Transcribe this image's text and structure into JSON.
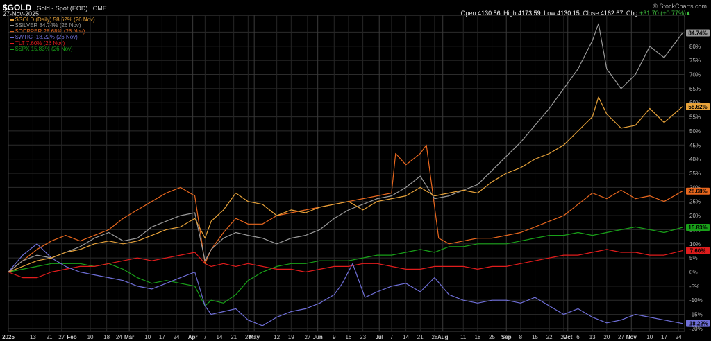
{
  "header": {
    "symbol": "$GOLD",
    "description": "Gold - Spot (EOD)",
    "exchange": "CME",
    "date": "27-Nov-2025",
    "brand": "© StockCharts.com",
    "ohlc": {
      "open_label": "Open",
      "open": "4130.56",
      "high_label": "High",
      "high": "4173.59",
      "low_label": "Low",
      "low": "4130.15",
      "close_label": "Close",
      "close": "4162.67",
      "chg_label": "Chg",
      "chg": "+31.70 (+0.77%)"
    }
  },
  "legend": [
    {
      "text": "$GOLD (Daily) 58.62% (26 Nov)",
      "color": "#e8a33a"
    },
    {
      "text": "$SILVER 84.74% (26 Nov)",
      "color": "#9a9a9a"
    },
    {
      "text": "$COPPER 28.68% (26 Nov)",
      "color": "#e8671e"
    },
    {
      "text": "$WTIC -18.22% (26 Nov)",
      "color": "#6f6fd8"
    },
    {
      "text": "TLT 7.60% (26 Nov)",
      "color": "#e01c1c"
    },
    {
      "text": "$SPX 15.83% (26 Nov)",
      "color": "#19a019"
    }
  ],
  "chart_data": {
    "type": "line",
    "ylim": [
      -21,
      91
    ],
    "y_ticks": [
      -20,
      -15,
      -10,
      -5,
      0,
      5,
      10,
      15,
      20,
      25,
      30,
      35,
      40,
      45,
      50,
      55,
      60,
      65,
      70,
      75,
      80,
      85
    ],
    "y_tick_labels": [
      "-20%",
      "-15%",
      "-10%",
      "-5%",
      "0%",
      "5%",
      "10%",
      "15%",
      "20%",
      "25%",
      "30%",
      "35%",
      "40%",
      "45%",
      "50%",
      "55%",
      "60%",
      "65%",
      "70%",
      "75%",
      "80%",
      "85%"
    ],
    "x_range": [
      "2025-01-01",
      "2025-11-27"
    ],
    "x_ticks": [
      {
        "date": "2025-01-01",
        "label": "2025",
        "bold": true
      },
      {
        "date": "2025-01-13",
        "label": "13"
      },
      {
        "date": "2025-01-21",
        "label": "21"
      },
      {
        "date": "2025-01-27",
        "label": "27"
      },
      {
        "date": "2025-02-01",
        "label": "Feb",
        "bold": true
      },
      {
        "date": "2025-02-10",
        "label": "10"
      },
      {
        "date": "2025-02-18",
        "label": "18"
      },
      {
        "date": "2025-02-24",
        "label": "24"
      },
      {
        "date": "2025-03-01",
        "label": "Mar",
        "bold": true
      },
      {
        "date": "2025-03-10",
        "label": "10"
      },
      {
        "date": "2025-03-17",
        "label": "17"
      },
      {
        "date": "2025-03-24",
        "label": "24"
      },
      {
        "date": "2025-04-01",
        "label": "Apr",
        "bold": true
      },
      {
        "date": "2025-04-07",
        "label": "7"
      },
      {
        "date": "2025-04-14",
        "label": "14"
      },
      {
        "date": "2025-04-21",
        "label": "21"
      },
      {
        "date": "2025-04-28",
        "label": "28"
      },
      {
        "date": "2025-05-01",
        "label": "May",
        "bold": true
      },
      {
        "date": "2025-05-12",
        "label": "12"
      },
      {
        "date": "2025-05-19",
        "label": "19"
      },
      {
        "date": "2025-05-27",
        "label": "27"
      },
      {
        "date": "2025-06-01",
        "label": "Jun",
        "bold": true
      },
      {
        "date": "2025-06-09",
        "label": "9"
      },
      {
        "date": "2025-06-16",
        "label": "16"
      },
      {
        "date": "2025-06-23",
        "label": "23"
      },
      {
        "date": "2025-07-01",
        "label": "Jul",
        "bold": true
      },
      {
        "date": "2025-07-07",
        "label": "7"
      },
      {
        "date": "2025-07-14",
        "label": "14"
      },
      {
        "date": "2025-07-21",
        "label": "21"
      },
      {
        "date": "2025-07-28",
        "label": "28"
      },
      {
        "date": "2025-08-01",
        "label": "Aug",
        "bold": true
      },
      {
        "date": "2025-08-11",
        "label": "11"
      },
      {
        "date": "2025-08-18",
        "label": "18"
      },
      {
        "date": "2025-08-25",
        "label": "25"
      },
      {
        "date": "2025-09-01",
        "label": "Sep",
        "bold": true
      },
      {
        "date": "2025-09-08",
        "label": "8"
      },
      {
        "date": "2025-09-15",
        "label": "15"
      },
      {
        "date": "2025-09-22",
        "label": "22"
      },
      {
        "date": "2025-09-29",
        "label": "29"
      },
      {
        "date": "2025-10-01",
        "label": "Oct",
        "bold": true
      },
      {
        "date": "2025-10-06",
        "label": "6"
      },
      {
        "date": "2025-10-13",
        "label": "13"
      },
      {
        "date": "2025-10-20",
        "label": "20"
      },
      {
        "date": "2025-10-27",
        "label": "27"
      },
      {
        "date": "2025-11-01",
        "label": "Nov",
        "bold": true
      },
      {
        "date": "2025-11-10",
        "label": "10"
      },
      {
        "date": "2025-11-17",
        "label": "17"
      },
      {
        "date": "2025-11-24",
        "label": "24"
      }
    ],
    "series": [
      {
        "name": "$GOLD",
        "color": "#e8a33a",
        "last_label": "58.62%",
        "last": 58.62,
        "x": [
          "2025-01-01",
          "2025-01-08",
          "2025-01-15",
          "2025-01-22",
          "2025-01-29",
          "2025-02-05",
          "2025-02-12",
          "2025-02-19",
          "2025-02-26",
          "2025-03-05",
          "2025-03-12",
          "2025-03-19",
          "2025-03-26",
          "2025-04-02",
          "2025-04-07",
          "2025-04-10",
          "2025-04-16",
          "2025-04-22",
          "2025-04-28",
          "2025-05-05",
          "2025-05-12",
          "2025-05-19",
          "2025-05-26",
          "2025-06-02",
          "2025-06-09",
          "2025-06-16",
          "2025-06-23",
          "2025-06-30",
          "2025-07-07",
          "2025-07-14",
          "2025-07-21",
          "2025-07-28",
          "2025-08-04",
          "2025-08-11",
          "2025-08-18",
          "2025-08-25",
          "2025-09-01",
          "2025-09-08",
          "2025-09-15",
          "2025-09-22",
          "2025-09-29",
          "2025-10-06",
          "2025-10-13",
          "2025-10-16",
          "2025-10-20",
          "2025-10-27",
          "2025-11-03",
          "2025-11-10",
          "2025-11-17",
          "2025-11-26"
        ],
        "y": [
          0,
          2,
          4,
          5,
          7,
          8,
          10,
          11,
          10,
          11,
          13,
          15,
          16,
          19,
          12,
          18,
          22,
          28,
          25,
          24,
          20,
          22,
          21,
          23,
          24,
          25,
          22,
          25,
          26,
          27,
          30,
          27,
          28,
          29,
          28,
          32,
          35,
          37,
          40,
          42,
          45,
          50,
          55,
          62,
          56,
          51,
          52,
          58,
          53,
          58.62
        ]
      },
      {
        "name": "$SILVER",
        "color": "#9a9a9a",
        "last_label": "84.74%",
        "last": 84.74,
        "x": [
          "2025-01-01",
          "2025-01-08",
          "2025-01-15",
          "2025-01-22",
          "2025-01-29",
          "2025-02-05",
          "2025-02-12",
          "2025-02-19",
          "2025-02-26",
          "2025-03-05",
          "2025-03-12",
          "2025-03-19",
          "2025-03-26",
          "2025-04-02",
          "2025-04-07",
          "2025-04-10",
          "2025-04-16",
          "2025-04-22",
          "2025-04-28",
          "2025-05-05",
          "2025-05-12",
          "2025-05-19",
          "2025-05-26",
          "2025-06-02",
          "2025-06-09",
          "2025-06-16",
          "2025-06-23",
          "2025-06-30",
          "2025-07-07",
          "2025-07-14",
          "2025-07-21",
          "2025-07-28",
          "2025-08-04",
          "2025-08-11",
          "2025-08-18",
          "2025-08-25",
          "2025-09-01",
          "2025-09-08",
          "2025-09-15",
          "2025-09-22",
          "2025-09-29",
          "2025-10-06",
          "2025-10-13",
          "2025-10-16",
          "2025-10-20",
          "2025-10-27",
          "2025-11-03",
          "2025-11-10",
          "2025-11-17",
          "2025-11-26"
        ],
        "y": [
          0,
          4,
          6,
          5,
          7,
          9,
          12,
          14,
          11,
          12,
          16,
          18,
          20,
          21,
          4,
          8,
          12,
          14,
          13,
          12,
          10,
          12,
          13,
          15,
          19,
          22,
          24,
          26,
          27,
          30,
          34,
          26,
          27,
          29,
          31,
          36,
          41,
          46,
          52,
          58,
          65,
          72,
          82,
          88,
          72,
          65,
          70,
          80,
          76,
          84.74
        ]
      },
      {
        "name": "$COPPER",
        "color": "#e8671e",
        "last_label": "28.68%",
        "last": 28.68,
        "x": [
          "2025-01-01",
          "2025-01-08",
          "2025-01-15",
          "2025-01-22",
          "2025-01-29",
          "2025-02-05",
          "2025-02-12",
          "2025-02-19",
          "2025-02-26",
          "2025-03-05",
          "2025-03-12",
          "2025-03-19",
          "2025-03-26",
          "2025-04-02",
          "2025-04-07",
          "2025-04-10",
          "2025-04-16",
          "2025-04-22",
          "2025-04-28",
          "2025-05-05",
          "2025-05-12",
          "2025-05-19",
          "2025-05-26",
          "2025-06-02",
          "2025-06-09",
          "2025-06-16",
          "2025-06-23",
          "2025-06-30",
          "2025-07-07",
          "2025-07-09",
          "2025-07-14",
          "2025-07-21",
          "2025-07-24",
          "2025-07-30",
          "2025-08-04",
          "2025-08-11",
          "2025-08-18",
          "2025-08-25",
          "2025-09-01",
          "2025-09-08",
          "2025-09-15",
          "2025-09-22",
          "2025-09-29",
          "2025-10-06",
          "2025-10-13",
          "2025-10-20",
          "2025-10-27",
          "2025-11-03",
          "2025-11-10",
          "2025-11-17",
          "2025-11-26"
        ],
        "y": [
          0,
          4,
          8,
          11,
          13,
          11,
          13,
          15,
          19,
          22,
          25,
          28,
          30,
          27,
          3,
          8,
          14,
          19,
          17,
          17,
          20,
          21,
          22,
          23,
          24,
          25,
          26,
          27,
          28,
          42,
          38,
          42,
          45,
          12,
          10,
          11,
          12,
          12,
          13,
          14,
          16,
          18,
          20,
          24,
          28,
          26,
          29,
          26,
          27,
          25,
          28.68
        ]
      },
      {
        "name": "$WTIC",
        "color": "#6f6fd8",
        "last_label": "-18.22%",
        "last": -18.22,
        "x": [
          "2025-01-01",
          "2025-01-08",
          "2025-01-15",
          "2025-01-22",
          "2025-01-29",
          "2025-02-05",
          "2025-02-12",
          "2025-02-19",
          "2025-02-26",
          "2025-03-05",
          "2025-03-12",
          "2025-03-19",
          "2025-03-26",
          "2025-04-02",
          "2025-04-07",
          "2025-04-10",
          "2025-04-16",
          "2025-04-22",
          "2025-04-28",
          "2025-05-05",
          "2025-05-12",
          "2025-05-19",
          "2025-05-26",
          "2025-06-02",
          "2025-06-09",
          "2025-06-13",
          "2025-06-18",
          "2025-06-24",
          "2025-06-30",
          "2025-07-07",
          "2025-07-14",
          "2025-07-21",
          "2025-07-28",
          "2025-08-04",
          "2025-08-11",
          "2025-08-18",
          "2025-08-25",
          "2025-09-01",
          "2025-09-08",
          "2025-09-15",
          "2025-09-22",
          "2025-09-29",
          "2025-10-06",
          "2025-10-13",
          "2025-10-20",
          "2025-10-27",
          "2025-11-03",
          "2025-11-10",
          "2025-11-17",
          "2025-11-26"
        ],
        "y": [
          0,
          6,
          10,
          5,
          2,
          0,
          -1,
          -2,
          -3,
          -5,
          -6,
          -4,
          -2,
          0,
          -12,
          -15,
          -14,
          -13,
          -17,
          -19,
          -16,
          -14,
          -13,
          -11,
          -8,
          -4,
          3,
          -9,
          -7,
          -5,
          -4,
          -7,
          -2,
          -8,
          -10,
          -11,
          -10,
          -10,
          -11,
          -9,
          -12,
          -15,
          -13,
          -16,
          -18,
          -17,
          -15,
          -16,
          -17,
          -18.22
        ]
      },
      {
        "name": "TLT",
        "color": "#e01c1c",
        "last_label": "7.60%",
        "last": 7.6,
        "x": [
          "2025-01-01",
          "2025-01-08",
          "2025-01-15",
          "2025-01-22",
          "2025-01-29",
          "2025-02-05",
          "2025-02-12",
          "2025-02-19",
          "2025-02-26",
          "2025-03-05",
          "2025-03-12",
          "2025-03-19",
          "2025-03-26",
          "2025-04-02",
          "2025-04-07",
          "2025-04-10",
          "2025-04-16",
          "2025-04-22",
          "2025-04-28",
          "2025-05-05",
          "2025-05-12",
          "2025-05-19",
          "2025-05-26",
          "2025-06-02",
          "2025-06-09",
          "2025-06-16",
          "2025-06-23",
          "2025-06-30",
          "2025-07-07",
          "2025-07-14",
          "2025-07-21",
          "2025-07-28",
          "2025-08-04",
          "2025-08-11",
          "2025-08-18",
          "2025-08-25",
          "2025-09-01",
          "2025-09-08",
          "2025-09-15",
          "2025-09-22",
          "2025-09-29",
          "2025-10-06",
          "2025-10-13",
          "2025-10-20",
          "2025-10-27",
          "2025-11-03",
          "2025-11-10",
          "2025-11-17",
          "2025-11-26"
        ],
        "y": [
          0,
          -2,
          -2,
          0,
          1,
          2,
          2,
          3,
          4,
          5,
          4,
          5,
          6,
          7,
          3,
          2,
          3,
          2,
          3,
          2,
          1,
          1,
          0,
          1,
          2,
          2,
          3,
          3,
          2,
          1,
          1,
          2,
          2,
          2,
          1,
          2,
          2,
          3,
          4,
          5,
          6,
          6,
          7,
          8,
          7,
          7,
          6,
          6,
          7.6
        ]
      },
      {
        "name": "$SPX",
        "color": "#19a019",
        "last_label": "15.83%",
        "last": 15.83,
        "x": [
          "2025-01-01",
          "2025-01-08",
          "2025-01-15",
          "2025-01-22",
          "2025-01-29",
          "2025-02-05",
          "2025-02-12",
          "2025-02-19",
          "2025-02-26",
          "2025-03-05",
          "2025-03-12",
          "2025-03-19",
          "2025-03-26",
          "2025-04-02",
          "2025-04-07",
          "2025-04-10",
          "2025-04-16",
          "2025-04-22",
          "2025-04-28",
          "2025-05-05",
          "2025-05-12",
          "2025-05-19",
          "2025-05-26",
          "2025-06-02",
          "2025-06-09",
          "2025-06-16",
          "2025-06-23",
          "2025-06-30",
          "2025-07-07",
          "2025-07-14",
          "2025-07-21",
          "2025-07-28",
          "2025-08-04",
          "2025-08-11",
          "2025-08-18",
          "2025-08-25",
          "2025-09-01",
          "2025-09-08",
          "2025-09-15",
          "2025-09-22",
          "2025-09-29",
          "2025-10-06",
          "2025-10-13",
          "2025-10-20",
          "2025-10-27",
          "2025-11-03",
          "2025-11-10",
          "2025-11-17",
          "2025-11-26"
        ],
        "y": [
          0,
          1,
          2,
          3,
          3,
          3,
          2,
          3,
          1,
          -2,
          -4,
          -3,
          -4,
          -5,
          -12,
          -10,
          -11,
          -8,
          -3,
          0,
          2,
          3,
          3,
          4,
          4,
          4,
          5,
          6,
          6,
          7,
          8,
          7,
          9,
          9,
          10,
          10,
          10,
          11,
          12,
          13,
          13,
          14,
          13,
          14,
          15,
          16,
          15,
          14,
          15.83
        ]
      }
    ]
  }
}
